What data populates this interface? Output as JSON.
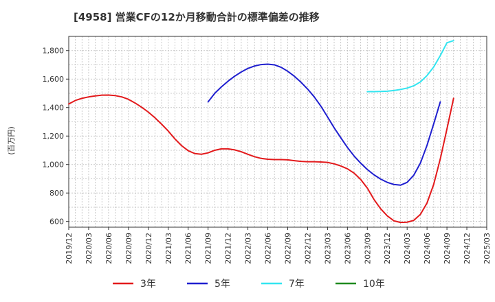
{
  "chart_data": {
    "type": "line",
    "title": "[4958]  営業CFの12か月移動合計の標準偏差の推移",
    "ylabel": "(百万円)",
    "xlabel": "",
    "ylim": [
      560,
      1900
    ],
    "yticks": [
      600,
      800,
      1000,
      1200,
      1400,
      1600,
      1800
    ],
    "yticklabels": [
      "600",
      "800",
      "1,000",
      "1,200",
      "1,400",
      "1,600",
      "1,800"
    ],
    "xticks": [
      "2019/12",
      "2020/03",
      "2020/06",
      "2020/09",
      "2020/12",
      "2021/03",
      "2021/06",
      "2021/09",
      "2021/12",
      "2022/03",
      "2022/06",
      "2022/09",
      "2022/12",
      "2023/03",
      "2023/06",
      "2023/09",
      "2023/12",
      "2024/03",
      "2024/06",
      "2024/09",
      "2024/12",
      "2025/03"
    ],
    "grid": true,
    "legend_position": "bottom",
    "series": [
      {
        "name": "3年",
        "color": "#e31a1c",
        "points": [
          [
            "2019/12",
            1425
          ],
          [
            "2020/01",
            1450
          ],
          [
            "2020/02",
            1465
          ],
          [
            "2020/03",
            1475
          ],
          [
            "2020/04",
            1482
          ],
          [
            "2020/05",
            1487
          ],
          [
            "2020/06",
            1488
          ],
          [
            "2020/07",
            1484
          ],
          [
            "2020/08",
            1475
          ],
          [
            "2020/09",
            1458
          ],
          [
            "2020/10",
            1432
          ],
          [
            "2020/11",
            1402
          ],
          [
            "2020/12",
            1368
          ],
          [
            "2021/01",
            1328
          ],
          [
            "2021/02",
            1283
          ],
          [
            "2021/03",
            1235
          ],
          [
            "2021/04",
            1180
          ],
          [
            "2021/05",
            1133
          ],
          [
            "2021/06",
            1097
          ],
          [
            "2021/07",
            1077
          ],
          [
            "2021/08",
            1072
          ],
          [
            "2021/09",
            1082
          ],
          [
            "2021/10",
            1100
          ],
          [
            "2021/11",
            1110
          ],
          [
            "2021/12",
            1110
          ],
          [
            "2022/01",
            1103
          ],
          [
            "2022/02",
            1090
          ],
          [
            "2022/03",
            1072
          ],
          [
            "2022/04",
            1055
          ],
          [
            "2022/05",
            1043
          ],
          [
            "2022/06",
            1037
          ],
          [
            "2022/07",
            1035
          ],
          [
            "2022/08",
            1035
          ],
          [
            "2022/09",
            1033
          ],
          [
            "2022/10",
            1027
          ],
          [
            "2022/11",
            1022
          ],
          [
            "2022/12",
            1020
          ],
          [
            "2023/01",
            1020
          ],
          [
            "2023/02",
            1018
          ],
          [
            "2023/03",
            1015
          ],
          [
            "2023/04",
            1005
          ],
          [
            "2023/05",
            990
          ],
          [
            "2023/06",
            970
          ],
          [
            "2023/07",
            940
          ],
          [
            "2023/08",
            895
          ],
          [
            "2023/09",
            835
          ],
          [
            "2023/10",
            755
          ],
          [
            "2023/11",
            690
          ],
          [
            "2023/12",
            640
          ],
          [
            "2024/01",
            605
          ],
          [
            "2024/02",
            593
          ],
          [
            "2024/03",
            595
          ],
          [
            "2024/04",
            608
          ],
          [
            "2024/05",
            650
          ],
          [
            "2024/06",
            730
          ],
          [
            "2024/07",
            860
          ],
          [
            "2024/08",
            1040
          ],
          [
            "2024/09",
            1250
          ],
          [
            "2024/10",
            1465
          ]
        ]
      },
      {
        "name": "5年",
        "color": "#1f1fcf",
        "points": [
          [
            "2021/09",
            1440
          ],
          [
            "2021/10",
            1500
          ],
          [
            "2021/11",
            1545
          ],
          [
            "2021/12",
            1585
          ],
          [
            "2022/01",
            1620
          ],
          [
            "2022/02",
            1650
          ],
          [
            "2022/03",
            1675
          ],
          [
            "2022/04",
            1692
          ],
          [
            "2022/05",
            1702
          ],
          [
            "2022/06",
            1705
          ],
          [
            "2022/07",
            1700
          ],
          [
            "2022/08",
            1683
          ],
          [
            "2022/09",
            1655
          ],
          [
            "2022/10",
            1620
          ],
          [
            "2022/11",
            1578
          ],
          [
            "2022/12",
            1530
          ],
          [
            "2023/01",
            1475
          ],
          [
            "2023/02",
            1410
          ],
          [
            "2023/03",
            1335
          ],
          [
            "2023/04",
            1258
          ],
          [
            "2023/05",
            1188
          ],
          [
            "2023/06",
            1120
          ],
          [
            "2023/07",
            1060
          ],
          [
            "2023/08",
            1010
          ],
          [
            "2023/09",
            965
          ],
          [
            "2023/10",
            928
          ],
          [
            "2023/11",
            898
          ],
          [
            "2023/12",
            875
          ],
          [
            "2024/01",
            860
          ],
          [
            "2024/02",
            855
          ],
          [
            "2024/03",
            875
          ],
          [
            "2024/04",
            925
          ],
          [
            "2024/05",
            1010
          ],
          [
            "2024/06",
            1135
          ],
          [
            "2024/07",
            1285
          ],
          [
            "2024/08",
            1440
          ]
        ]
      },
      {
        "name": "7年",
        "color": "#33e5f0",
        "points": [
          [
            "2023/09",
            1512
          ],
          [
            "2023/10",
            1512
          ],
          [
            "2023/11",
            1513
          ],
          [
            "2023/12",
            1515
          ],
          [
            "2024/01",
            1520
          ],
          [
            "2024/02",
            1527
          ],
          [
            "2024/03",
            1537
          ],
          [
            "2024/04",
            1553
          ],
          [
            "2024/05",
            1580
          ],
          [
            "2024/06",
            1625
          ],
          [
            "2024/07",
            1685
          ],
          [
            "2024/08",
            1765
          ],
          [
            "2024/09",
            1855
          ],
          [
            "2024/10",
            1870
          ]
        ]
      },
      {
        "name": "10年",
        "color": "#1f8a1f",
        "points": []
      }
    ]
  }
}
